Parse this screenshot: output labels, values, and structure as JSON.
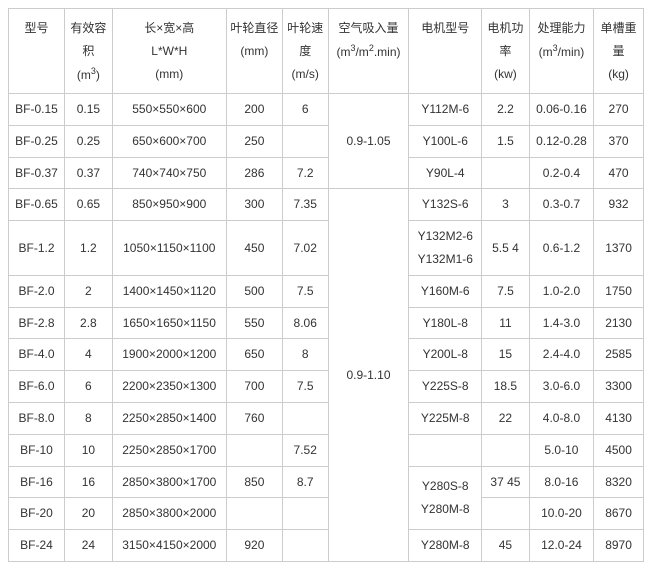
{
  "headers": [
    {
      "l1": "型号",
      "l2": "",
      "l3": ""
    },
    {
      "l1": "有效容",
      "l2": "积",
      "l3": "(m³)"
    },
    {
      "l1": "长×宽×高",
      "l2": "L*W*H",
      "l3": "(mm)"
    },
    {
      "l1": "叶轮直径",
      "l2": "(mm)",
      "l3": ""
    },
    {
      "l1": "叶轮速",
      "l2": "度",
      "l3": "(m/s)"
    },
    {
      "l1": "空气吸入量",
      "l2": "(m³/m².min)",
      "l3": ""
    },
    {
      "l1": "电机型号",
      "l2": "",
      "l3": ""
    },
    {
      "l1": "电机功",
      "l2": "率",
      "l3": "(kw)"
    },
    {
      "l1": "处理能力",
      "l2": "(m³/min)",
      "l3": ""
    },
    {
      "l1": "单槽重量",
      "l2": "(kg)",
      "l3": ""
    }
  ],
  "rows": [
    {
      "c0": "BF-0.15",
      "c1": "0.15",
      "c2": "550×550×600",
      "c3": "200",
      "c4": "6",
      "c5": "0.9-1.05",
      "c5rs": 3,
      "c6": "Y112M-6",
      "c7": "2.2",
      "c8": "0.06-0.16",
      "c9": "270"
    },
    {
      "c0": "BF-0.25",
      "c1": "0.25",
      "c2": "650×600×700",
      "c3": "250",
      "c4": "",
      "c6": "Y100L-6",
      "c7": "1.5",
      "c8": "0.12-0.28",
      "c9": "370"
    },
    {
      "c0": "BF-0.37",
      "c1": "0.37",
      "c2": "740×740×750",
      "c3": "286",
      "c4": "7.2",
      "c6": "Y90L-4",
      "c7": "",
      "c8": "0.2-0.4",
      "c9": "470"
    },
    {
      "c0": "BF-0.65",
      "c1": "0.65",
      "c2": "850×950×900",
      "c3": "300",
      "c4": "7.35",
      "c5": "0.9-1.10",
      "c5rs": 11,
      "c6": "Y132S-6",
      "c7": "3",
      "c8": "0.3-0.7",
      "c9": "932"
    },
    {
      "c0": "BF-1.2",
      "c1": "1.2",
      "c2": "1050×1150×1100",
      "c3": "450",
      "c4": "7.02",
      "c6": "Y132M2-6 Y132M1-6",
      "c7": "5.5 4",
      "c8": "0.6-1.2",
      "c9": "1370"
    },
    {
      "c0": "BF-2.0",
      "c1": "2",
      "c2": "1400×1450×1120",
      "c3": "500",
      "c4": "7.5",
      "c6": "Y160M-6",
      "c7": "7.5",
      "c8": "1.0-2.0",
      "c9": "1750"
    },
    {
      "c0": "BF-2.8",
      "c1": "2.8",
      "c2": "1650×1650×1150",
      "c3": "550",
      "c4": "8.06",
      "c6": "Y180L-8",
      "c7": "11",
      "c8": "1.4-3.0",
      "c9": "2130"
    },
    {
      "c0": "BF-4.0",
      "c1": "4",
      "c2": "1900×2000×1200",
      "c3": "650",
      "c4": "8",
      "c6": "Y200L-8",
      "c7": "15",
      "c8": "2.4-4.0",
      "c9": "2585"
    },
    {
      "c0": "BF-6.0",
      "c1": "6",
      "c2": "2200×2350×1300",
      "c3": "700",
      "c4": "7.5",
      "c6": "Y225S-8",
      "c7": "18.5",
      "c8": "3.0-6.0",
      "c9": "3300"
    },
    {
      "c0": "BF-8.0",
      "c1": "8",
      "c2": "2250×2850×1400",
      "c3": "760",
      "c4": "",
      "c6": "Y225M-8",
      "c7": "22",
      "c8": "4.0-8.0",
      "c9": "4130"
    },
    {
      "c0": "BF-10",
      "c1": "10",
      "c2": "2250×2850×1700",
      "c3": "",
      "c4": "7.52",
      "c6": "",
      "c7": "",
      "c8": "5.0-10",
      "c9": "4500"
    },
    {
      "c0": "BF-16",
      "c1": "16",
      "c2": "2850×3800×1700",
      "c3": "850",
      "c4": "8.7",
      "c6": "Y280S-8 Y280M-8",
      "c6rs": 2,
      "c7": "37 45",
      "c8": "8.0-16",
      "c9": "8320"
    },
    {
      "c0": "BF-20",
      "c1": "20",
      "c2": "2850×3800×2000",
      "c3": "",
      "c4": "",
      "c7": "",
      "c8": "10.0-20",
      "c9": "8670"
    },
    {
      "c0": "BF-24",
      "c1": "24",
      "c2": "3150×4150×2000",
      "c3": "920",
      "c4": "",
      "c6": "Y280M-8",
      "c7": "45",
      "c8": "12.0-24",
      "c9": "8970"
    }
  ]
}
